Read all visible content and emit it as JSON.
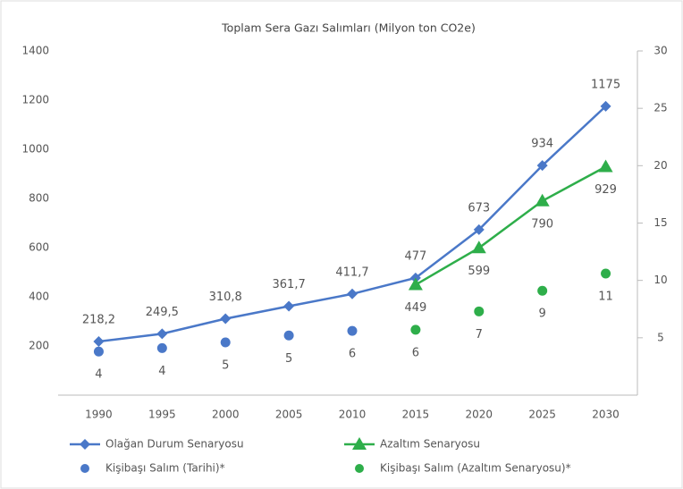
{
  "chart_data": {
    "type": "line",
    "title": "Toplam Sera Gazı Salımları (Milyon ton CO2e)",
    "categories": [
      "1990",
      "1995",
      "2000",
      "2005",
      "2010",
      "2015",
      "2020",
      "2025",
      "2030"
    ],
    "ylim": [
      0,
      1400
    ],
    "yticks": [
      200,
      400,
      600,
      800,
      1000,
      1200,
      1400
    ],
    "y2lim": [
      0,
      30
    ],
    "y2ticks": [
      5,
      10,
      15,
      20,
      25,
      30
    ],
    "grid": false,
    "legend": "bottom",
    "series": [
      {
        "name": "Olağan Durum Senaryosu",
        "type": "line",
        "marker": "diamond",
        "color": "#4a78c8",
        "label_position": "above",
        "values": [
          218.2,
          249.5,
          310.8,
          361.7,
          411.7,
          477,
          673,
          934,
          1175
        ],
        "value_labels": [
          "218,2",
          "249,5",
          "310,8",
          "361,7",
          "411,7",
          "477",
          "673",
          "934",
          "1175"
        ]
      },
      {
        "name": "Azaltım Senaryosu",
        "type": "line",
        "marker": "triangle",
        "color": "#2eae4a",
        "label_position": "below",
        "values": [
          null,
          null,
          null,
          null,
          null,
          449,
          599,
          790,
          929
        ],
        "value_labels": [
          null,
          null,
          null,
          null,
          null,
          "449",
          "599",
          "790",
          "929"
        ]
      },
      {
        "name": "Kişibaşı Salım (Tarihi)*",
        "type": "scatter",
        "axis": "y2",
        "color": "#4a78c8",
        "label_position": "below",
        "values": [
          3.8,
          4.1,
          4.6,
          5.2,
          5.6,
          null,
          null,
          null,
          null
        ],
        "value_labels": [
          "4",
          "4",
          "5",
          "5",
          "6",
          null,
          null,
          null,
          null
        ]
      },
      {
        "name": "Kişibaşı Salım (Azaltım Senaryosu)*",
        "type": "scatter",
        "axis": "y2",
        "color": "#2eae4a",
        "label_position": "below",
        "values": [
          null,
          null,
          null,
          null,
          null,
          5.7,
          7.3,
          9.1,
          10.6
        ],
        "value_labels": [
          null,
          null,
          null,
          null,
          null,
          "6",
          "7",
          "9",
          "11"
        ]
      }
    ]
  }
}
